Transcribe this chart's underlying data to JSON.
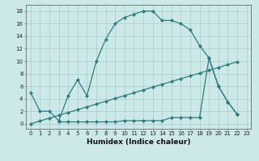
{
  "line1_x": [
    0,
    1,
    2,
    3,
    4,
    5,
    6,
    7,
    8,
    9,
    10,
    11,
    12,
    13,
    14,
    15,
    16,
    17,
    18,
    19,
    20,
    21,
    22
  ],
  "line1_y": [
    5.0,
    2.0,
    2.0,
    0.5,
    4.5,
    7.0,
    4.5,
    10.0,
    13.5,
    16.0,
    17.0,
    17.5,
    18.0,
    18.0,
    16.5,
    16.5,
    16.0,
    15.0,
    12.5,
    10.5,
    6.0,
    3.5,
    1.5
  ],
  "line2_x": [
    3,
    4,
    5,
    6,
    7,
    8,
    9,
    10,
    11,
    12,
    13,
    14,
    15,
    16,
    17,
    18,
    19,
    20,
    21,
    22
  ],
  "line2_y": [
    0.3,
    0.3,
    0.3,
    0.3,
    0.3,
    0.3,
    0.3,
    0.5,
    0.5,
    0.5,
    0.5,
    0.5,
    1.0,
    1.0,
    1.0,
    1.0,
    10.5,
    6.0,
    3.5,
    1.5
  ],
  "line3_x": [
    0,
    1,
    2,
    3,
    4,
    5,
    6,
    7,
    8,
    9,
    10,
    11,
    12,
    13,
    14,
    15,
    16,
    17,
    18,
    19,
    20,
    21,
    22
  ],
  "line3_y": [
    0.0,
    0.45,
    0.9,
    1.35,
    1.8,
    2.25,
    2.7,
    3.15,
    3.6,
    4.05,
    4.5,
    4.95,
    5.4,
    5.85,
    6.3,
    6.75,
    7.2,
    7.65,
    8.1,
    8.55,
    9.0,
    9.45,
    9.9
  ],
  "color": "#2e7d7d",
  "bg_color": "#cce8e8",
  "grid_color": "#a8cccc",
  "xlabel": "Humidex (Indice chaleur)",
  "xlim": [
    -0.5,
    23.5
  ],
  "ylim": [
    -0.8,
    19.0
  ],
  "xticks": [
    0,
    1,
    2,
    3,
    4,
    5,
    6,
    7,
    8,
    9,
    10,
    11,
    12,
    13,
    14,
    15,
    16,
    17,
    18,
    19,
    20,
    21,
    22,
    23
  ],
  "yticks": [
    0,
    2,
    4,
    6,
    8,
    10,
    12,
    14,
    16,
    18
  ],
  "tick_fontsize": 5.0,
  "xlabel_fontsize": 6.5,
  "markersize": 2.2,
  "linewidth": 0.9
}
